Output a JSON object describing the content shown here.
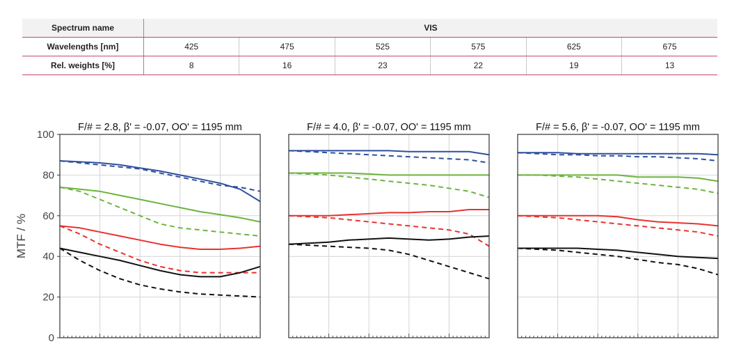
{
  "table": {
    "spectrum_label": "Spectrum name",
    "spectrum_value": "VIS",
    "wavelengths_label": "Wavelengths [nm]",
    "weights_label": "Rel. weights [%]",
    "wavelengths": [
      "425",
      "475",
      "525",
      "575",
      "625",
      "675"
    ],
    "weights": [
      "8",
      "16",
      "23",
      "22",
      "19",
      "13"
    ]
  },
  "colors": {
    "blue": "#2f4f9f",
    "green": "#6cb33f",
    "red": "#e8322e",
    "black": "#111111",
    "grid": "#d4d4d4",
    "frame": "#333333"
  },
  "chart_data": [
    {
      "type": "line",
      "title": "F/# = 2.8, β' = -0.07, OO' = 1195 mm",
      "ylabel": "MTF / %",
      "ylim": [
        0,
        100
      ],
      "yticks": [
        0,
        20,
        40,
        60,
        80,
        100
      ],
      "xlim": [
        0,
        1
      ],
      "x": [
        0,
        0.1,
        0.2,
        0.3,
        0.4,
        0.5,
        0.6,
        0.7,
        0.8,
        0.9,
        1.0
      ],
      "series": [
        {
          "color": "blue",
          "style": "solid",
          "values": [
            87,
            86.5,
            86,
            85,
            83.5,
            82,
            80,
            78,
            76,
            73,
            67
          ]
        },
        {
          "color": "blue",
          "style": "dashed",
          "values": [
            87,
            86,
            85,
            84,
            83,
            81,
            79,
            77,
            75,
            74,
            72
          ]
        },
        {
          "color": "green",
          "style": "solid",
          "values": [
            74,
            73,
            72,
            70,
            68,
            66,
            64,
            62,
            60.5,
            59,
            57
          ]
        },
        {
          "color": "green",
          "style": "dashed",
          "values": [
            74,
            72,
            68,
            64,
            60,
            56,
            54,
            53,
            52,
            51,
            50
          ]
        },
        {
          "color": "red",
          "style": "solid",
          "values": [
            55,
            54,
            52,
            50,
            48,
            46,
            44.5,
            43.5,
            43.5,
            44,
            45
          ]
        },
        {
          "color": "red",
          "style": "dashed",
          "values": [
            55,
            51,
            46,
            42,
            38,
            35,
            33,
            32,
            32,
            32,
            32
          ]
        },
        {
          "color": "black",
          "style": "solid",
          "values": [
            44,
            42,
            40,
            38,
            35.5,
            33,
            31,
            30,
            30,
            32,
            35
          ]
        },
        {
          "color": "black",
          "style": "dashed",
          "values": [
            44,
            38,
            33,
            29,
            26,
            24,
            22.5,
            21.5,
            21,
            20.5,
            20
          ]
        }
      ]
    },
    {
      "type": "line",
      "title": "F/# = 4.0, β' = -0.07, OO' = 1195 mm",
      "ylim": [
        0,
        100
      ],
      "xlim": [
        0,
        1
      ],
      "x": [
        0,
        0.1,
        0.2,
        0.3,
        0.4,
        0.5,
        0.6,
        0.7,
        0.8,
        0.9,
        1.0
      ],
      "series": [
        {
          "color": "blue",
          "style": "solid",
          "values": [
            92,
            92,
            92,
            92,
            92,
            92,
            91.5,
            91.5,
            91.5,
            91.5,
            90
          ]
        },
        {
          "color": "blue",
          "style": "dashed",
          "values": [
            92,
            91.5,
            91,
            90.5,
            90,
            89.5,
            89,
            88.5,
            88,
            87.5,
            86
          ]
        },
        {
          "color": "green",
          "style": "solid",
          "values": [
            81,
            81,
            81,
            81,
            80.5,
            80,
            80,
            80,
            80,
            80,
            80
          ]
        },
        {
          "color": "green",
          "style": "dashed",
          "values": [
            81,
            80.5,
            80,
            79,
            78,
            77,
            76,
            75,
            73.5,
            72,
            69
          ]
        },
        {
          "color": "red",
          "style": "solid",
          "values": [
            60,
            60,
            60,
            60.5,
            61,
            61.5,
            61.5,
            62,
            62,
            63,
            63
          ]
        },
        {
          "color": "red",
          "style": "dashed",
          "values": [
            60,
            59.5,
            59,
            58,
            57,
            56,
            55,
            54,
            53,
            51,
            45
          ]
        },
        {
          "color": "black",
          "style": "solid",
          "values": [
            46,
            46.5,
            47,
            48,
            48.5,
            49,
            48.5,
            48,
            48.5,
            49.5,
            50
          ]
        },
        {
          "color": "black",
          "style": "dashed",
          "values": [
            46,
            45.5,
            45,
            44.5,
            44,
            43,
            41,
            38,
            35,
            32,
            29
          ]
        }
      ]
    },
    {
      "type": "line",
      "title": "F/# = 5.6, β' = -0.07, OO' = 1195 mm",
      "ylim": [
        0,
        100
      ],
      "xlim": [
        0,
        1
      ],
      "x": [
        0,
        0.1,
        0.2,
        0.3,
        0.4,
        0.5,
        0.6,
        0.7,
        0.8,
        0.9,
        1.0
      ],
      "series": [
        {
          "color": "blue",
          "style": "solid",
          "values": [
            91,
            91,
            91,
            90.5,
            90.5,
            90.5,
            90.5,
            90.5,
            90.5,
            90.5,
            90
          ]
        },
        {
          "color": "blue",
          "style": "dashed",
          "values": [
            91,
            90.5,
            90,
            90,
            89.5,
            89.5,
            89,
            89,
            88.5,
            88,
            87
          ]
        },
        {
          "color": "green",
          "style": "solid",
          "values": [
            80,
            80,
            80,
            80,
            80,
            80,
            79,
            79,
            79,
            78.5,
            77
          ]
        },
        {
          "color": "green",
          "style": "dashed",
          "values": [
            80,
            80,
            79.5,
            79,
            78,
            77,
            76,
            75,
            74,
            73,
            71
          ]
        },
        {
          "color": "red",
          "style": "solid",
          "values": [
            60,
            60,
            60,
            60,
            60,
            59.5,
            58,
            57,
            56.5,
            56,
            55
          ]
        },
        {
          "color": "red",
          "style": "dashed",
          "values": [
            60,
            59.5,
            59,
            58,
            57,
            56,
            55,
            54,
            53,
            52,
            50
          ]
        },
        {
          "color": "black",
          "style": "solid",
          "values": [
            44,
            44,
            44,
            44,
            43.5,
            43,
            42,
            41,
            40,
            39.5,
            39
          ]
        },
        {
          "color": "black",
          "style": "dashed",
          "values": [
            44,
            43.5,
            43,
            42,
            41,
            40,
            38.5,
            37,
            36,
            34,
            31
          ]
        }
      ]
    }
  ]
}
